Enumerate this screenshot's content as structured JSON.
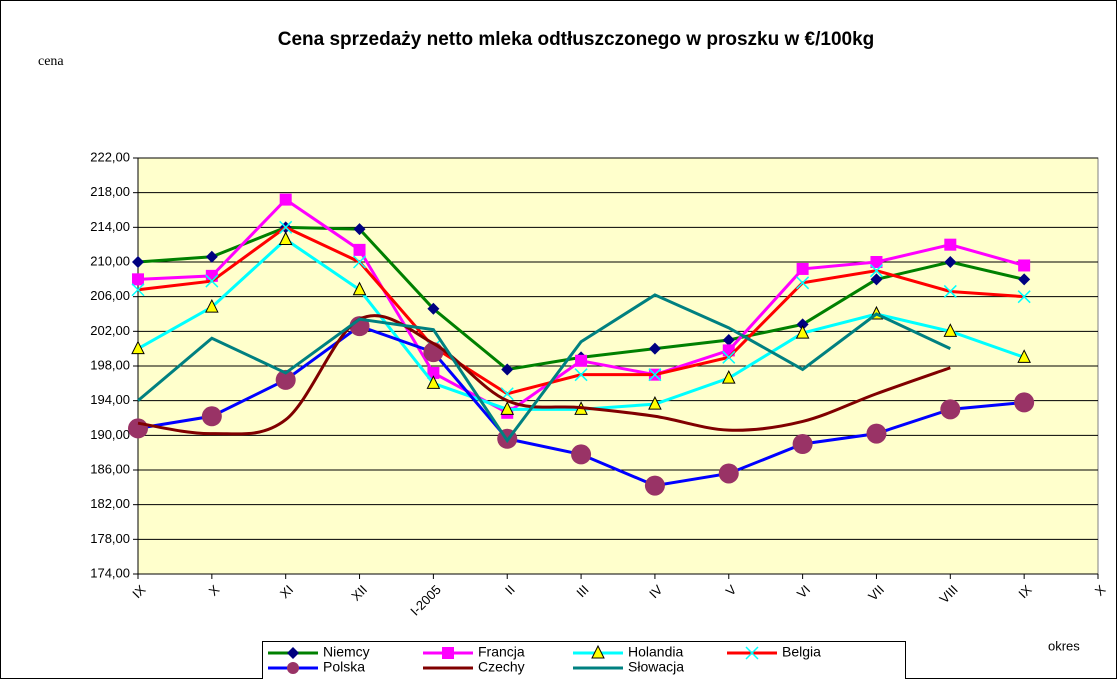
{
  "chart_data": {
    "type": "line",
    "title": "Cena sprzedaży netto mleka odtłuszczonego w proszku w €/100kg",
    "y_label": "cena",
    "x_label": "okres",
    "categories": [
      "IX",
      "X",
      "XI",
      "XII",
      "I-2005",
      "II",
      "III",
      "IV",
      "V",
      "VI",
      "VII",
      "VIII",
      "IX",
      "X"
    ],
    "ylim": [
      174,
      222
    ],
    "yticks": [
      {
        "value": 174,
        "label": "174,00"
      },
      {
        "value": 178,
        "label": "178,00"
      },
      {
        "value": 182,
        "label": "182,00"
      },
      {
        "value": 186,
        "label": "186,00"
      },
      {
        "value": 190,
        "label": "190,00"
      },
      {
        "value": 194,
        "label": "194,00"
      },
      {
        "value": 198,
        "label": "198,00"
      },
      {
        "value": 202,
        "label": "202,00"
      },
      {
        "value": 206,
        "label": "206,00"
      },
      {
        "value": 210,
        "label": "210,00"
      },
      {
        "value": 214,
        "label": "214,00"
      },
      {
        "value": 218,
        "label": "218,00"
      },
      {
        "value": 222,
        "label": "222,00"
      }
    ],
    "grid": true,
    "background": "#ffffcc",
    "legend": "bottom",
    "series": [
      {
        "name": "Niemcy",
        "color": "#008000",
        "marker": "diamond",
        "marker_color": "#000080",
        "values": [
          210.0,
          210.6,
          214.0,
          213.8,
          204.6,
          197.6,
          199.0,
          200.0,
          201.0,
          202.8,
          208.0,
          210.0,
          208.0,
          null
        ]
      },
      {
        "name": "Francja",
        "color": "#ff00ff",
        "marker": "square",
        "marker_color": "#ff00ff",
        "values": [
          208.0,
          208.4,
          217.2,
          211.4,
          197.2,
          192.6,
          198.6,
          197.0,
          199.8,
          209.2,
          210.0,
          212.0,
          209.6,
          null
        ]
      },
      {
        "name": "Holandia",
        "color": "#00ffff",
        "marker": "triangle",
        "marker_color": "#ffff00",
        "values": [
          200.0,
          204.8,
          212.6,
          206.8,
          196.0,
          193.0,
          193.0,
          193.6,
          196.6,
          201.8,
          204.0,
          202.0,
          199.0,
          null
        ]
      },
      {
        "name": "Belgia",
        "color": "#ff0000",
        "marker": "x",
        "marker_color": "#00ffff",
        "values": [
          206.8,
          207.8,
          214.0,
          210.0,
          200.2,
          194.8,
          197.0,
          197.0,
          199.0,
          207.6,
          209.0,
          206.6,
          206.0,
          null
        ]
      },
      {
        "name": "Polska",
        "color": "#0000ff",
        "marker": "circle",
        "marker_color": "#993366",
        "values": [
          190.8,
          192.2,
          196.4,
          202.6,
          199.6,
          189.6,
          187.8,
          184.2,
          185.6,
          189.0,
          190.2,
          193.0,
          193.8,
          null
        ]
      },
      {
        "name": "Czechy",
        "color": "#800000",
        "marker": "none",
        "smooth": true,
        "values": [
          191.4,
          190.2,
          191.8,
          203.4,
          200.6,
          194.0,
          193.2,
          192.2,
          190.6,
          191.6,
          194.8,
          197.8,
          null,
          null
        ]
      },
      {
        "name": "Słowacja",
        "color": "#008080",
        "marker": "none",
        "values": [
          194.0,
          201.2,
          197.2,
          203.4,
          202.2,
          189.4,
          200.8,
          206.2,
          202.4,
          197.6,
          204.0,
          200.0,
          null,
          null
        ]
      }
    ]
  }
}
